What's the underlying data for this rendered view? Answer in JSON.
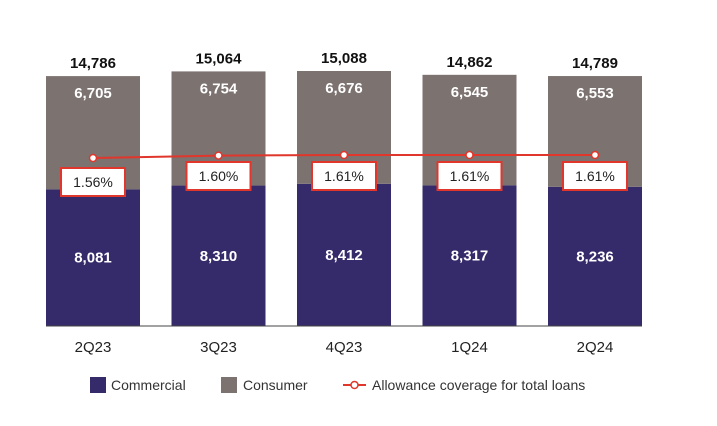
{
  "chart_data": {
    "type": "bar",
    "stacked": true,
    "categories": [
      "2Q23",
      "3Q23",
      "4Q23",
      "1Q24",
      "2Q24"
    ],
    "series": [
      {
        "name": "Commercial",
        "values": [
          8081,
          8310,
          8412,
          8317,
          8236
        ],
        "labels": [
          "8,081",
          "8,310",
          "8,412",
          "8,317",
          "8,236"
        ],
        "color": "#352b6b"
      },
      {
        "name": "Consumer",
        "values": [
          6705,
          6754,
          6676,
          6545,
          6553
        ],
        "labels": [
          "6,705",
          "6,754",
          "6,676",
          "6,545",
          "6,553"
        ],
        "color": "#7c7270"
      }
    ],
    "totals": [
      14786,
      15064,
      15088,
      14862,
      14789
    ],
    "total_labels": [
      "14,786",
      "15,064",
      "15,088",
      "14,862",
      "14,789"
    ],
    "line_series": {
      "name": "Allowance coverage for total loans",
      "values": [
        1.56,
        1.6,
        1.61,
        1.61,
        1.61
      ],
      "labels": [
        "1.56%",
        "1.60%",
        "1.61%",
        "1.61%",
        "1.61%"
      ],
      "color": "#e0362b"
    },
    "ylim": [
      0,
      16500
    ],
    "grid": false,
    "legend_position": "bottom"
  }
}
